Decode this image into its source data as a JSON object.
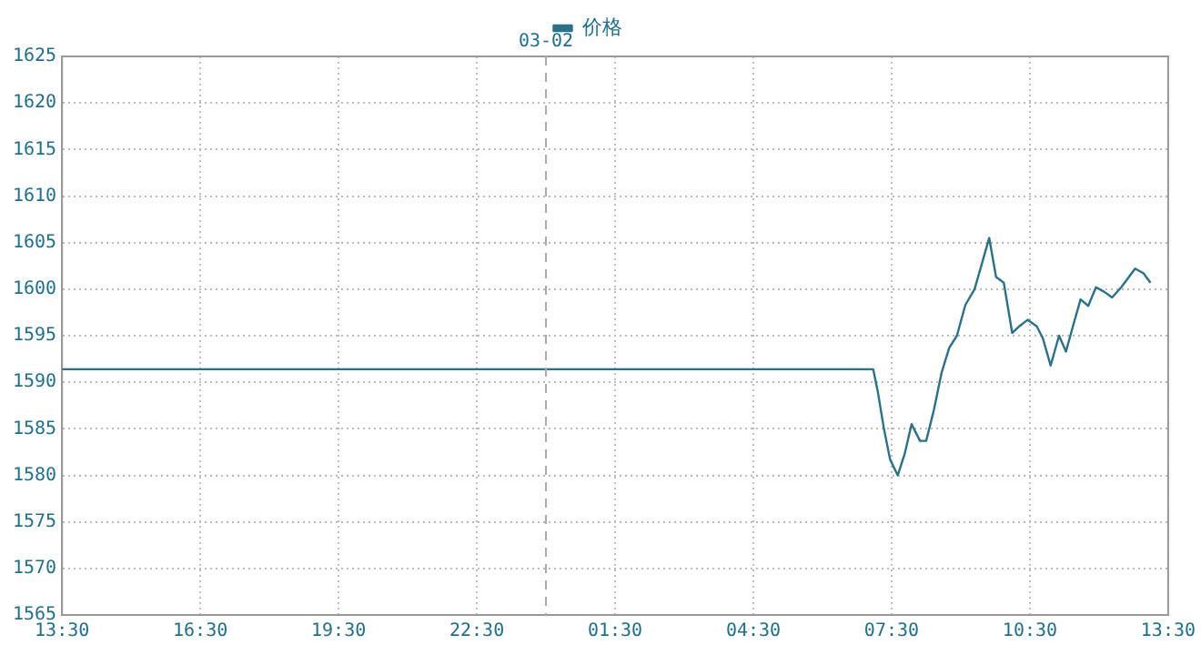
{
  "chart_data": {
    "type": "line",
    "legend": "top",
    "grid": true,
    "marker": "none",
    "line_style": "solid",
    "x": [
      "--03-01T13:30",
      "--03-02T07:06",
      "--03-02T07:12",
      "--03-02T07:20",
      "--03-02T07:28",
      "--03-02T07:38",
      "--03-02T07:47",
      "--03-02T07:56",
      "--03-02T08:07",
      "--03-02T08:15",
      "--03-02T08:25",
      "--03-02T08:35",
      "--03-02T08:45",
      "--03-02T08:55",
      "--03-02T09:06",
      "--03-02T09:18",
      "--03-02T09:26",
      "--03-02T09:37",
      "--03-02T09:46",
      "--03-02T09:56",
      "--03-02T10:07",
      "--03-02T10:16",
      "--03-02T10:27",
      "--03-02T10:39",
      "--03-02T10:47",
      "--03-02T10:57",
      "--03-02T11:08",
      "--03-02T11:17",
      "--03-02T11:26",
      "--03-02T11:36",
      "--03-02T11:46",
      "--03-02T11:56",
      "--03-02T12:07",
      "--03-02T12:17",
      "--03-02T12:29",
      "--03-02T12:47",
      "--03-02T12:58",
      "--03-02T13:07"
    ],
    "series": [
      {
        "name": "价格",
        "color": "#2a7189",
        "values": [
          1591.4,
          1591.4,
          1589,
          1585,
          1581.7,
          1580,
          1582.3,
          1585.5,
          1583.7,
          1583.7,
          1587,
          1591,
          1593.7,
          1595,
          1598.3,
          1600,
          1602.3,
          1605.5,
          1601.3,
          1600.7,
          1595.3,
          1596,
          1596.7,
          1596,
          1594.7,
          1591.8,
          1595,
          1593.3,
          1596,
          1598.9,
          1598.2,
          1600.2,
          1599.7,
          1599.1,
          1600.2,
          1602.2,
          1601.7,
          1600.7
        ]
      }
    ],
    "xlim": [
      "--03-01T13:30",
      "--03-02T13:30"
    ],
    "xticks": [
      {
        "value": "--03-01T13:30",
        "label": "13:30"
      },
      {
        "value": "--03-01T16:30",
        "label": "16:30"
      },
      {
        "value": "--03-01T19:30",
        "label": "19:30"
      },
      {
        "value": "--03-01T22:30",
        "label": "22:30"
      },
      {
        "value": "--03-02T01:30",
        "label": "01:30"
      },
      {
        "value": "--03-02T04:30",
        "label": "04:30"
      },
      {
        "value": "--03-02T07:30",
        "label": "07:30"
      },
      {
        "value": "--03-02T10:30",
        "label": "10:30"
      },
      {
        "value": "--03-02T13:30",
        "label": "13:30"
      }
    ],
    "ylim": [
      1565,
      1625
    ],
    "yticks": [
      1565,
      1570,
      1575,
      1580,
      1585,
      1590,
      1595,
      1600,
      1605,
      1610,
      1615,
      1620,
      1625
    ],
    "ref_lines": [
      {
        "axis": "x",
        "value": "--03-02",
        "label": "03-02",
        "color": "#aaaaaa",
        "line_style": "dashed"
      }
    ]
  }
}
